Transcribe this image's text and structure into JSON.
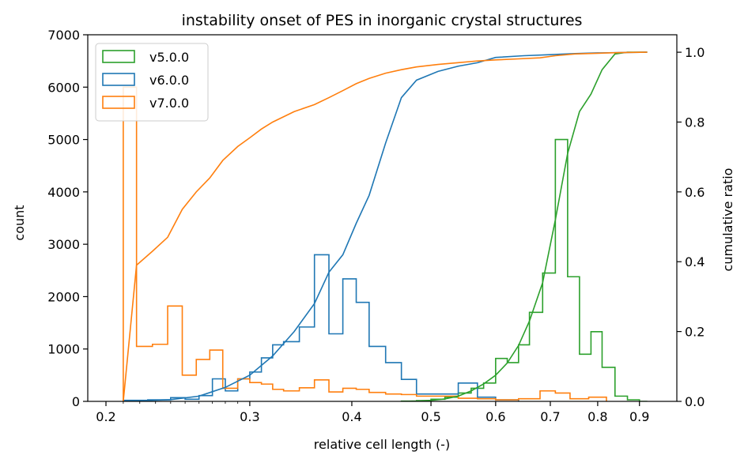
{
  "chart_data": {
    "type": "histogram+line",
    "title": "instability onset of PES in inorganic crystal structures",
    "xlabel": "relative cell length (-)",
    "ylabel": "count",
    "ylabel_right": "cumulative ratio",
    "xscale": "log",
    "xlim": [
      0.19,
      1.0
    ],
    "ylim": [
      0,
      7000
    ],
    "ylim_right": [
      0,
      1.05
    ],
    "xticks": [
      {
        "value": 0.2,
        "label": "0.2"
      },
      {
        "value": 0.3,
        "label": "0.3"
      },
      {
        "value": 0.4,
        "label": "0.4"
      },
      {
        "value": 0.5,
        "label": "0.5"
      },
      {
        "value": 0.6,
        "label": "0.6"
      },
      {
        "value": 0.7,
        "label": "0.7"
      },
      {
        "value": 0.8,
        "label": "0.8"
      },
      {
        "value": 0.9,
        "label": "0.9"
      }
    ],
    "yticks": [
      {
        "value": 0,
        "label": "0"
      },
      {
        "value": 1000,
        "label": "1000"
      },
      {
        "value": 2000,
        "label": "2000"
      },
      {
        "value": 3000,
        "label": "3000"
      },
      {
        "value": 4000,
        "label": "4000"
      },
      {
        "value": 5000,
        "label": "5000"
      },
      {
        "value": 6000,
        "label": "6000"
      },
      {
        "value": 7000,
        "label": "7000"
      }
    ],
    "yticks_right": [
      {
        "value": 0.0,
        "label": "0.0"
      },
      {
        "value": 0.2,
        "label": "0.2"
      },
      {
        "value": 0.4,
        "label": "0.4"
      },
      {
        "value": 0.6,
        "label": "0.6"
      },
      {
        "value": 0.8,
        "label": "0.8"
      },
      {
        "value": 1.0,
        "label": "1.0"
      }
    ],
    "legend_position": "top-left",
    "series": [
      {
        "name": "v5.0.0",
        "color": "#2ca02c",
        "hist_edges": [
          0.46,
          0.48,
          0.5,
          0.52,
          0.54,
          0.56,
          0.58,
          0.6,
          0.62,
          0.64,
          0.66,
          0.685,
          0.71,
          0.735,
          0.76,
          0.785,
          0.81,
          0.84,
          0.87,
          0.9,
          0.92
        ],
        "hist_counts": [
          5,
          15,
          40,
          80,
          160,
          250,
          350,
          820,
          740,
          1080,
          1700,
          2450,
          5000,
          2380,
          900,
          1330,
          650,
          100,
          30,
          0
        ],
        "cdf_x": [
          0.46,
          0.48,
          0.5,
          0.52,
          0.54,
          0.56,
          0.58,
          0.6,
          0.62,
          0.64,
          0.66,
          0.685,
          0.71,
          0.735,
          0.76,
          0.785,
          0.81,
          0.84,
          0.87,
          0.9,
          0.92
        ],
        "cdf_y": [
          0.0,
          0.001,
          0.003,
          0.007,
          0.015,
          0.03,
          0.05,
          0.075,
          0.11,
          0.16,
          0.23,
          0.34,
          0.52,
          0.71,
          0.83,
          0.88,
          0.95,
          0.995,
          1.0,
          1.0,
          1.0
        ]
      },
      {
        "name": "v6.0.0",
        "color": "#1f77b4",
        "hist_edges": [
          0.21,
          0.225,
          0.24,
          0.25,
          0.26,
          0.27,
          0.28,
          0.29,
          0.3,
          0.31,
          0.32,
          0.33,
          0.345,
          0.36,
          0.375,
          0.39,
          0.405,
          0.42,
          0.44,
          0.46,
          0.48,
          0.51,
          0.54,
          0.57,
          0.6,
          0.64
        ],
        "hist_counts": [
          20,
          30,
          70,
          40,
          110,
          430,
          200,
          430,
          560,
          830,
          1080,
          1140,
          1420,
          2800,
          1290,
          2340,
          1890,
          1050,
          740,
          420,
          140,
          140,
          350,
          80,
          30
        ],
        "cdf_x": [
          0.21,
          0.24,
          0.26,
          0.28,
          0.3,
          0.32,
          0.34,
          0.36,
          0.375,
          0.39,
          0.405,
          0.42,
          0.44,
          0.46,
          0.48,
          0.51,
          0.54,
          0.57,
          0.6,
          0.65,
          0.7,
          0.75,
          0.8,
          0.85,
          0.92
        ],
        "cdf_y": [
          0.0,
          0.005,
          0.015,
          0.04,
          0.075,
          0.13,
          0.2,
          0.28,
          0.37,
          0.42,
          0.51,
          0.59,
          0.74,
          0.87,
          0.92,
          0.945,
          0.96,
          0.97,
          0.985,
          0.99,
          0.993,
          0.996,
          0.998,
          0.999,
          1.0
        ]
      },
      {
        "name": "v7.0.0",
        "color": "#ff7f0e",
        "hist_edges": [
          0.21,
          0.218,
          0.228,
          0.238,
          0.248,
          0.258,
          0.268,
          0.278,
          0.29,
          0.3,
          0.31,
          0.32,
          0.33,
          0.345,
          0.36,
          0.375,
          0.39,
          0.405,
          0.42,
          0.44,
          0.46,
          0.48,
          0.51,
          0.54,
          0.57,
          0.6,
          0.64,
          0.68,
          0.71,
          0.74,
          0.78,
          0.82
        ],
        "hist_counts": [
          6000,
          1050,
          1090,
          1820,
          500,
          800,
          980,
          250,
          430,
          360,
          330,
          230,
          200,
          260,
          410,
          180,
          250,
          230,
          170,
          140,
          130,
          100,
          100,
          60,
          50,
          30,
          50,
          200,
          160,
          50,
          80
        ],
        "cdf_x": [
          0.21,
          0.218,
          0.228,
          0.238,
          0.248,
          0.258,
          0.268,
          0.278,
          0.29,
          0.3,
          0.31,
          0.32,
          0.34,
          0.36,
          0.375,
          0.39,
          0.405,
          0.42,
          0.44,
          0.46,
          0.48,
          0.51,
          0.54,
          0.57,
          0.6,
          0.64,
          0.68,
          0.71,
          0.75,
          0.8,
          0.85,
          0.92
        ],
        "cdf_y": [
          0.0,
          0.39,
          0.43,
          0.47,
          0.55,
          0.6,
          0.64,
          0.69,
          0.73,
          0.755,
          0.78,
          0.8,
          0.83,
          0.85,
          0.87,
          0.89,
          0.91,
          0.925,
          0.94,
          0.95,
          0.958,
          0.965,
          0.97,
          0.975,
          0.978,
          0.981,
          0.984,
          0.99,
          0.995,
          0.997,
          0.999,
          1.0
        ]
      }
    ]
  }
}
